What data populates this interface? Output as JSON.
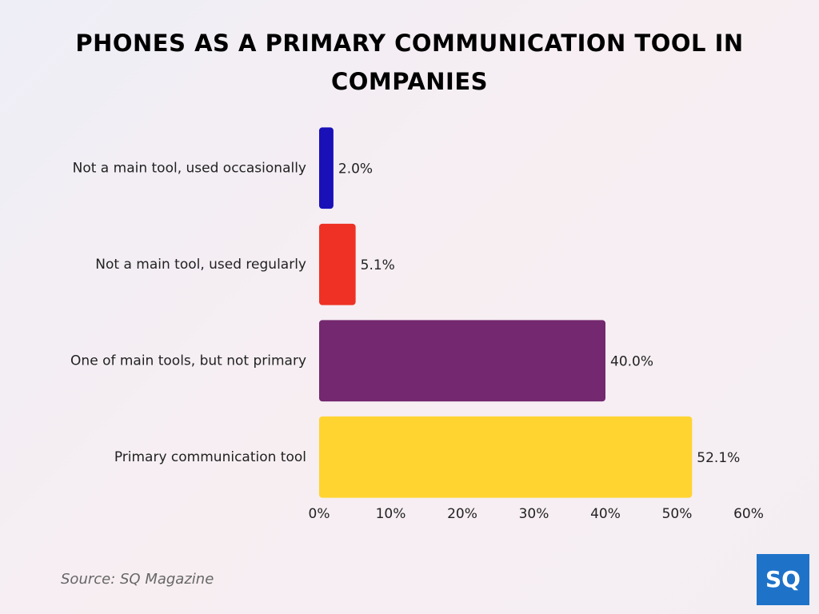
{
  "chart_data": {
    "type": "bar",
    "orientation": "horizontal",
    "title": "PHONES AS A PRIMARY COMMUNICATION TOOL IN COMPANIES",
    "categories": [
      "Not a main tool, used occasionally",
      "Not a main tool, used regularly",
      "One of main tools, but not primary",
      "Primary communication tool"
    ],
    "values": [
      2.0,
      5.1,
      40.0,
      52.1
    ],
    "value_labels": [
      "2.0%",
      "5.1%",
      "40.0%",
      "52.1%"
    ],
    "colors": [
      "#1a10b8",
      "#ee3124",
      "#74286f",
      "#ffd430"
    ],
    "xlim": [
      0,
      60
    ],
    "xticks": [
      {
        "value": 0,
        "label": "0%"
      },
      {
        "value": 10,
        "label": "10%"
      },
      {
        "value": 20,
        "label": "20%"
      },
      {
        "value": 30,
        "label": "30%"
      },
      {
        "value": 40,
        "label": "40%"
      },
      {
        "value": 50,
        "label": "50%"
      },
      {
        "value": 60,
        "label": "60%"
      }
    ],
    "grid": false,
    "source": "Source: SQ Magazine",
    "logo": "SQ"
  }
}
